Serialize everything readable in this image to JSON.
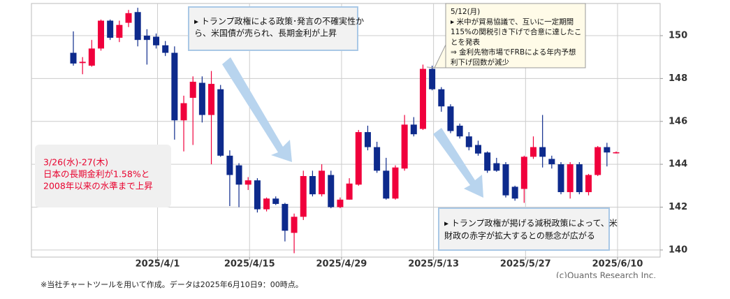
{
  "chart_data": {
    "type": "candlestick",
    "categories": [
      null,
      null,
      null,
      null,
      null,
      null,
      null,
      null,
      null,
      "2025/4/1",
      null,
      null,
      null,
      null,
      null,
      null,
      null,
      null,
      null,
      "2025/4/15",
      null,
      null,
      null,
      null,
      null,
      null,
      null,
      null,
      null,
      "2025/4/29",
      null,
      null,
      null,
      null,
      null,
      null,
      null,
      null,
      null,
      "2025/5/13",
      null,
      null,
      null,
      null,
      null,
      null,
      null,
      null,
      null,
      "2025/5/27",
      null,
      null,
      null,
      null,
      null,
      null,
      null,
      null,
      null,
      "2025/6/10"
    ],
    "open": [
      149.2,
      148.72,
      148.6,
      149.4,
      150.7,
      149.9,
      150.6,
      151.1,
      150.0,
      149.95,
      149.55,
      149.2,
      146.05,
      147.1,
      147.8,
      146.3,
      147.5,
      144.4,
      143.95,
      143.05,
      143.25,
      141.9,
      142.4,
      142.15,
      140.8,
      141.55,
      143.45,
      142.6,
      143.5,
      142.0,
      142.35,
      143.05,
      145.5,
      144.8,
      143.7,
      142.4,
      143.8,
      145.85,
      145.65,
      148.45,
      147.5,
      146.7,
      145.8,
      145.3,
      144.9,
      144.55,
      144.05,
      144.0,
      142.95,
      142.85,
      144.35,
      144.8,
      144.25,
      144.0,
      142.7,
      144.0,
      142.7,
      143.5,
      144.8,
      144.55
    ],
    "high": [
      150.2,
      149.0,
      149.8,
      150.75,
      150.75,
      150.7,
      151.2,
      151.3,
      150.3,
      150.1,
      149.75,
      149.5,
      147.2,
      148.1,
      148.1,
      148.35,
      147.7,
      144.65,
      144.05,
      143.4,
      143.35,
      142.45,
      142.5,
      142.2,
      141.7,
      143.7,
      143.7,
      144.0,
      143.7,
      142.45,
      143.35,
      145.6,
      145.8,
      145.05,
      144.3,
      143.95,
      146.3,
      146.2,
      148.65,
      148.6,
      147.6,
      146.8,
      145.9,
      145.5,
      145.1,
      144.6,
      144.3,
      144.1,
      143.0,
      144.4,
      145.3,
      146.3,
      144.4,
      144.1,
      144.1,
      144.1,
      143.55,
      144.85,
      145.0,
      144.6
    ],
    "low": [
      148.6,
      148.2,
      148.55,
      149.3,
      149.8,
      149.7,
      150.4,
      149.5,
      148.65,
      149.4,
      149.05,
      145.15,
      144.6,
      144.9,
      145.95,
      144.0,
      144.35,
      142.05,
      142.0,
      142.8,
      141.75,
      141.8,
      142.1,
      140.4,
      139.85,
      141.4,
      142.5,
      142.5,
      141.95,
      141.95,
      142.35,
      143.0,
      144.65,
      143.6,
      142.35,
      142.35,
      143.7,
      145.3,
      145.6,
      147.45,
      146.45,
      145.45,
      145.2,
      144.65,
      144.4,
      143.6,
      143.65,
      142.45,
      142.3,
      142.2,
      144.25,
      143.85,
      143.8,
      142.6,
      142.4,
      142.6,
      142.55,
      143.45,
      143.9,
      144.5
    ],
    "close": [
      148.7,
      148.78,
      149.4,
      150.7,
      149.9,
      150.5,
      151.05,
      149.8,
      149.8,
      149.55,
      149.2,
      146.05,
      146.85,
      147.85,
      146.3,
      147.75,
      144.4,
      143.5,
      143.05,
      143.25,
      141.9,
      142.4,
      142.15,
      140.9,
      141.55,
      143.45,
      142.6,
      143.7,
      142.0,
      142.35,
      143.1,
      145.5,
      144.8,
      143.7,
      142.4,
      143.85,
      145.85,
      145.4,
      148.45,
      147.5,
      146.7,
      145.55,
      145.3,
      144.8,
      144.5,
      143.7,
      143.7,
      142.55,
      142.4,
      144.35,
      144.8,
      144.35,
      144.0,
      142.7,
      144.0,
      142.7,
      143.5,
      144.8,
      144.55,
      144.56
    ],
    "up_color": "#f0003c",
    "down_color": "#0d2a8c",
    "ylim": [
      139.67,
      151.5
    ],
    "yticks": [
      140,
      142,
      144,
      146,
      148,
      150
    ],
    "grid": true,
    "annotations": [
      {
        "lines": [
          "▸ トランプ政権による政策･発言の不確実性か",
          "ら、米国債が売られ、長期金利が上昇"
        ]
      },
      {
        "lines": [
          "5/12(月)",
          "▸ 米中が貿易協議で、互いに一定期間",
          "115%の関税引き下げで合意に達したこ",
          "とを発表",
          "⇒  金利先物市場でFRBによる年内予想",
          "利下げ回数が減少"
        ]
      },
      {
        "lines": [
          "▸ トランプ政権が掲げる減税政策によって、米",
          "財政の赤字が拡大するとの懸念が広がる"
        ]
      },
      {
        "lines": [
          "3/26(水)-27(木)",
          "日本の長期金利が1.58%と",
          "2008年以来の水準まで上昇"
        ]
      }
    ],
    "source": "(c)Quants Research Inc.",
    "note": "※当社チャートツールを用いて作成。データは2025年6月10日9：00時点。"
  }
}
